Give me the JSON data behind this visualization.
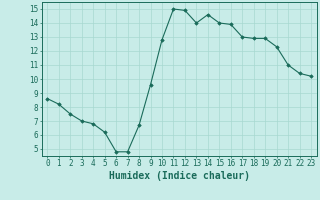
{
  "x": [
    0,
    1,
    2,
    3,
    4,
    5,
    6,
    7,
    8,
    9,
    10,
    11,
    12,
    13,
    14,
    15,
    16,
    17,
    18,
    19,
    20,
    21,
    22,
    23
  ],
  "y": [
    8.6,
    8.2,
    7.5,
    7.0,
    6.8,
    6.2,
    4.8,
    4.8,
    6.7,
    9.6,
    12.8,
    15.0,
    14.9,
    14.0,
    14.6,
    14.0,
    13.9,
    13.0,
    12.9,
    12.9,
    12.3,
    11.0,
    10.4,
    10.2
  ],
  "xlim": [
    -0.5,
    23.5
  ],
  "ylim": [
    4.5,
    15.5
  ],
  "yticks": [
    5,
    6,
    7,
    8,
    9,
    10,
    11,
    12,
    13,
    14,
    15
  ],
  "xticks": [
    0,
    1,
    2,
    3,
    4,
    5,
    6,
    7,
    8,
    9,
    10,
    11,
    12,
    13,
    14,
    15,
    16,
    17,
    18,
    19,
    20,
    21,
    22,
    23
  ],
  "xlabel": "Humidex (Indice chaleur)",
  "line_color": "#1a6b5a",
  "marker": "D",
  "marker_size": 1.8,
  "bg_color": "#c8ece8",
  "grid_color": "#a8d8d0",
  "axis_color": "#1a6b5a",
  "tick_label_fontsize": 5.5,
  "xlabel_fontsize": 7.0
}
